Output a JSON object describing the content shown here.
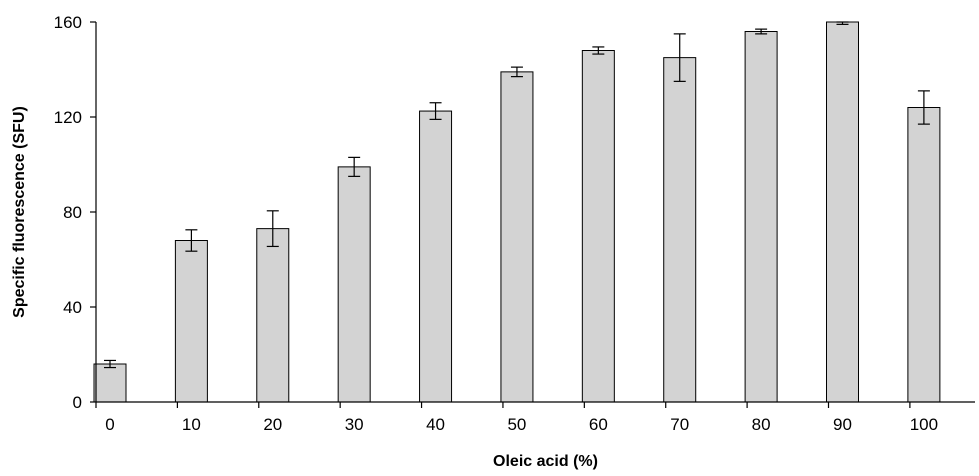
{
  "chart_data": {
    "type": "bar",
    "title": "",
    "xlabel": "Oleic acid (%)",
    "ylabel": "Specific fluorescence (SFU)",
    "ylim": [
      0,
      160
    ],
    "yticks": [
      0,
      40,
      80,
      120,
      160
    ],
    "xticks": [
      "0",
      "10",
      "20",
      "30",
      "40",
      "50",
      "60",
      "70",
      "80",
      "90",
      "100"
    ],
    "categories": [
      "0",
      "10",
      "20",
      "30",
      "40",
      "50",
      "60",
      "70",
      "80",
      "90",
      "100"
    ],
    "values": [
      16,
      68,
      73,
      99,
      122.5,
      139,
      148,
      145,
      156,
      160,
      124
    ],
    "error": [
      1.5,
      4.5,
      7.5,
      4,
      3.5,
      2,
      1.5,
      10,
      1,
      1,
      7
    ],
    "bar_color": "#d3d3d3",
    "bar_stroke": "#000000",
    "grid": false,
    "legend": "none"
  }
}
